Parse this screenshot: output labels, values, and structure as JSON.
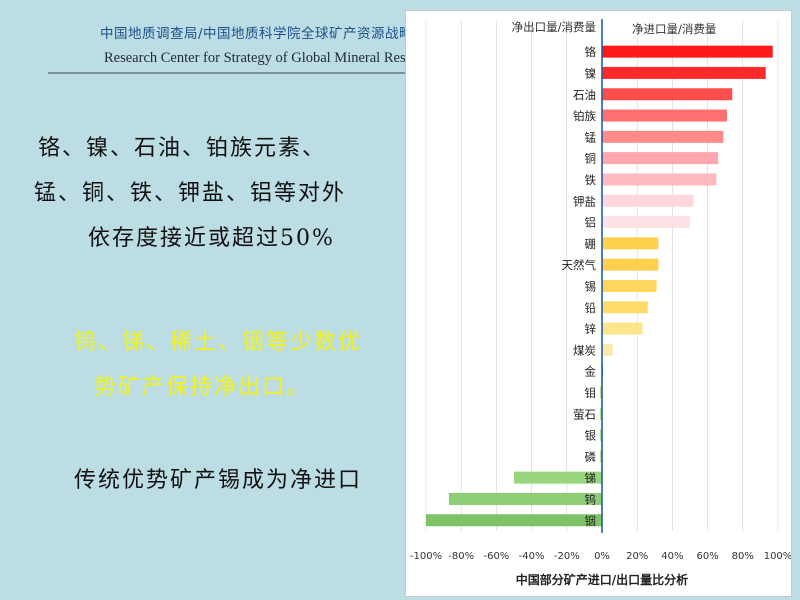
{
  "header": {
    "org_cn": "中国地质调查局/中国地质科学院全球矿产资源战略研究中心",
    "org_en": "Research Center for Strategy of Global Mineral Resources, CGS"
  },
  "text_blocks": [
    {
      "lines": [
        "铬、镍、石油、铂族元素、",
        "锰、铜、铁、钾盐、铝等对外",
        "依存度接近或超过50%"
      ]
    },
    {
      "lines": [
        "钨、锑、稀土、铟等少数优",
        "势矿产保持净出口。"
      ]
    },
    {
      "lines": [
        "传统优势矿产锡成为净进口"
      ]
    }
  ],
  "colors": {
    "background": "#bcdde3",
    "import_series": [
      "#ff1a1a",
      "#ff2a2a",
      "#ff4d4d",
      "#ff7070",
      "#ff8a8a",
      "#ffa5ad",
      "#ffb9c0",
      "#ffd7dc",
      "#ffe2e6"
    ],
    "minor_import_series": [
      "#ffd04e",
      "#ffd04e",
      "#ffd65c",
      "#ffdb6c",
      "#ffe48e",
      "#ffe9a8"
    ],
    "export_series": [
      "#aedd93",
      "#9ad680",
      "#8ccd76",
      "#7ec366"
    ],
    "axis": "#1f5fa8",
    "grid": "#d0d0d0"
  },
  "chart_data": {
    "type": "bar",
    "orientation": "horizontal",
    "title": "中国部分矿产进口/出口量比分析",
    "legend_left": "净出口量/消费量",
    "legend_right": "净进口量/消费量",
    "xlim": [
      -100,
      100
    ],
    "x_ticks": [
      "-100%",
      "-80%",
      "-60%",
      "-40%",
      "-20%",
      "0%",
      "20%",
      "40%",
      "60%",
      "80%",
      "100%"
    ],
    "grid": true,
    "categories": [
      "铬",
      "镍",
      "石油",
      "铂族",
      "锰",
      "铜",
      "铁",
      "钾盐",
      "铝",
      "硼",
      "天然气",
      "锡",
      "铅",
      "锌",
      "煤炭",
      "金",
      "钼",
      "萤石",
      "银",
      "磷",
      "锑",
      "钨",
      "铟"
    ],
    "values": [
      97,
      93,
      74,
      71,
      69,
      66,
      65,
      52,
      50,
      32,
      32,
      31,
      26,
      23,
      6,
      0,
      -1,
      -1,
      -1,
      -1,
      -50,
      -87,
      -100
    ]
  }
}
